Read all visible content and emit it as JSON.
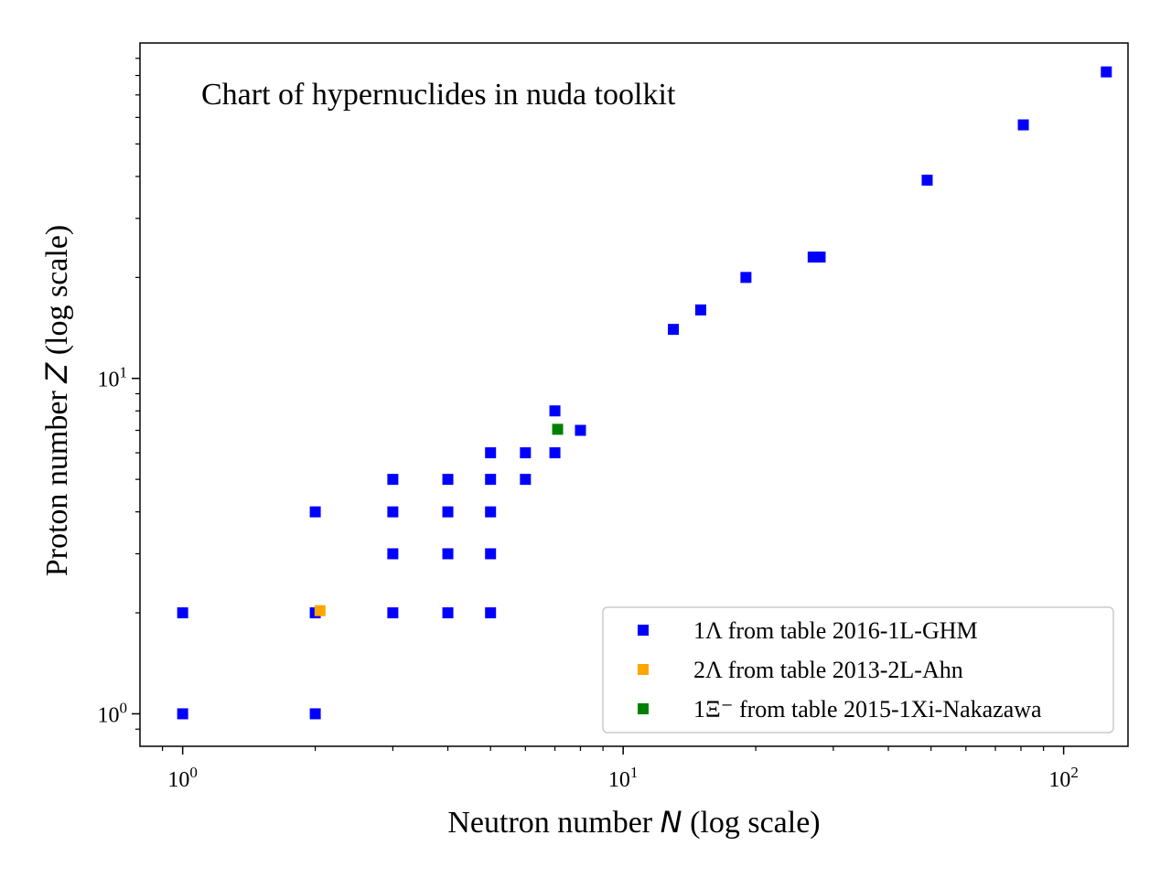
{
  "chart_data": {
    "type": "scatter",
    "title": "Chart of hypernuclides in nuda toolkit",
    "xlabel": {
      "prefix": "Neutron number ",
      "var": "N",
      "suffix": " (log scale)"
    },
    "ylabel": {
      "prefix": "Proton number ",
      "var": "Z",
      "suffix": " (log scale)"
    },
    "xscale": "log",
    "yscale": "log",
    "xlim": [
      0.8,
      140
    ],
    "ylim": [
      0.8,
      100
    ],
    "xticks": [
      {
        "value": 1,
        "base": "10",
        "exp": "0"
      },
      {
        "value": 10,
        "base": "10",
        "exp": "1"
      },
      {
        "value": 100,
        "base": "10",
        "exp": "2"
      }
    ],
    "yticks": [
      {
        "value": 1,
        "base": "10",
        "exp": "0"
      },
      {
        "value": 10,
        "base": "10",
        "exp": "1"
      }
    ],
    "legend_position": "lower-right",
    "series": [
      {
        "name": "1Λ from table 2016-1L-GHM",
        "color": "#0000ff",
        "points": [
          [
            1,
            1
          ],
          [
            1,
            2
          ],
          [
            2,
            1
          ],
          [
            2,
            2
          ],
          [
            2,
            4
          ],
          [
            3,
            2
          ],
          [
            3,
            3
          ],
          [
            3,
            4
          ],
          [
            3,
            5
          ],
          [
            4,
            2
          ],
          [
            4,
            3
          ],
          [
            4,
            4
          ],
          [
            4,
            5
          ],
          [
            5,
            2
          ],
          [
            5,
            3
          ],
          [
            5,
            4
          ],
          [
            5,
            5
          ],
          [
            5,
            6
          ],
          [
            6,
            5
          ],
          [
            6,
            6
          ],
          [
            7,
            6
          ],
          [
            7,
            8
          ],
          [
            8,
            7
          ],
          [
            13,
            14
          ],
          [
            15,
            16
          ],
          [
            19,
            20
          ],
          [
            27,
            23
          ],
          [
            28,
            23
          ],
          [
            49,
            39
          ],
          [
            81,
            57
          ],
          [
            125,
            82
          ]
        ]
      },
      {
        "name": "2Λ from table 2013-2L-Ahn",
        "color": "#ffa500",
        "points": [
          [
            2.05,
            2.03
          ]
        ]
      },
      {
        "name": "1Ξ⁻ from table 2015-1Xi-Nakazawa",
        "color": "#008000",
        "points": [
          [
            7.1,
            7.05
          ]
        ]
      }
    ]
  }
}
